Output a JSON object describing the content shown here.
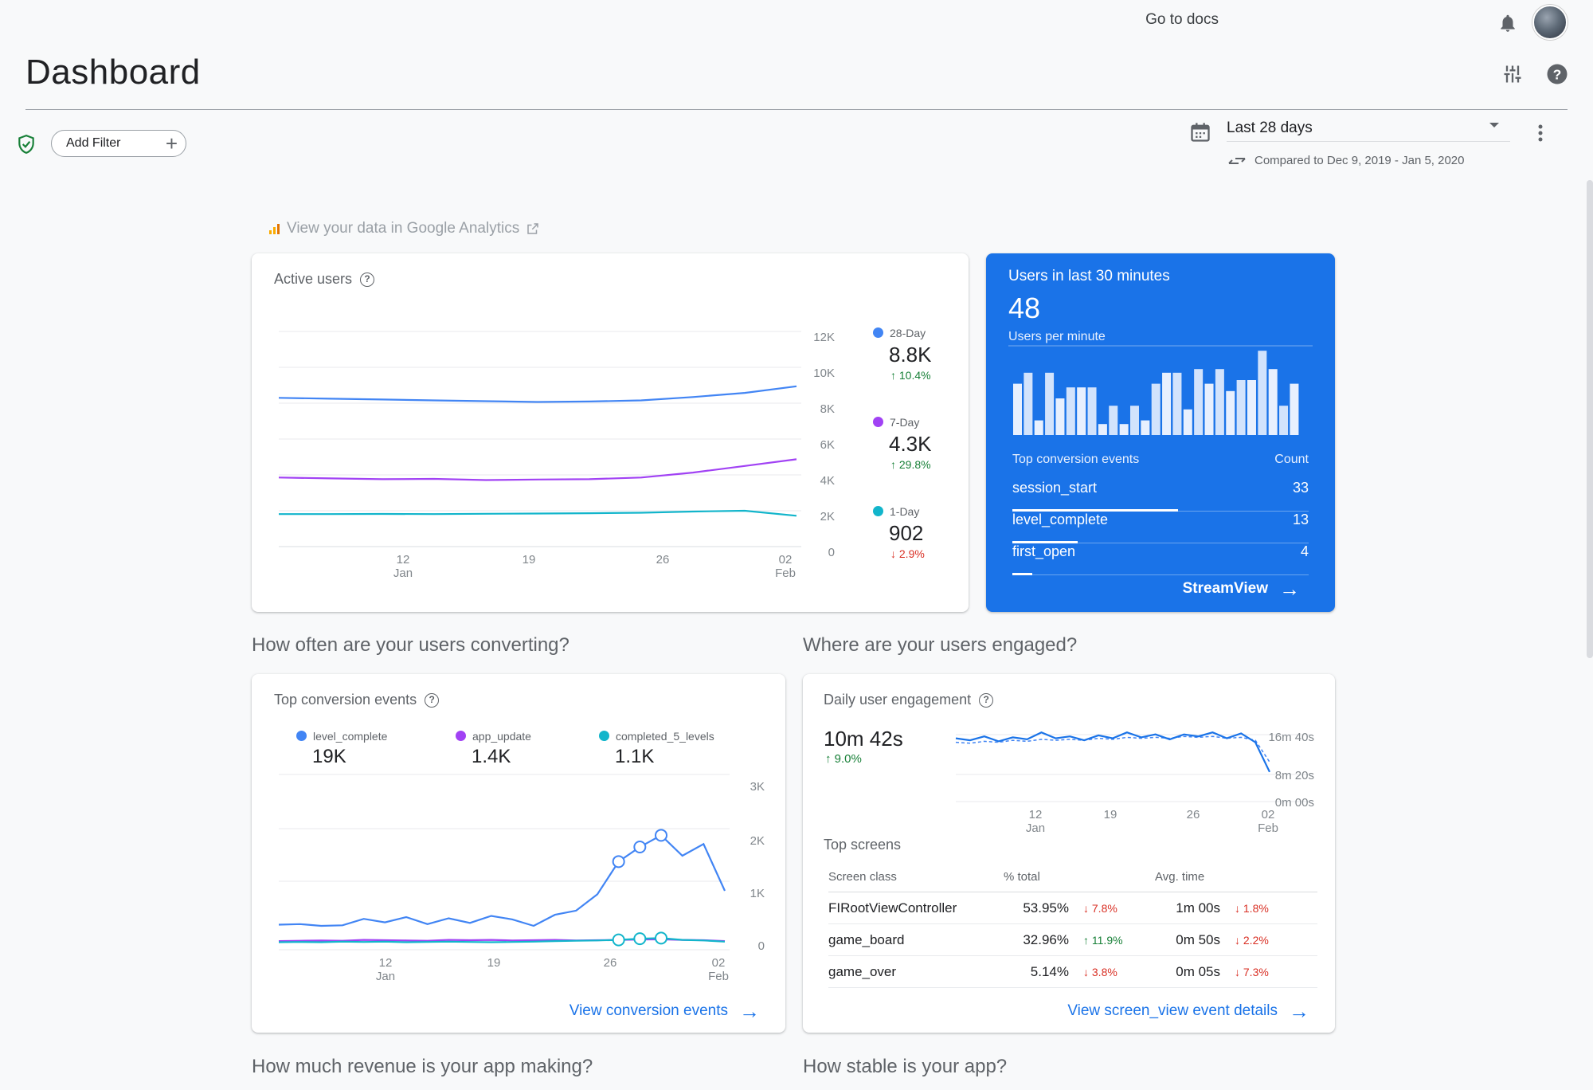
{
  "header": {
    "docs_link": "Go to docs",
    "title": "Dashboard"
  },
  "filters": {
    "add_filter": "Add Filter",
    "date_range": "Last 28 days",
    "compared": "Compared to Dec 9, 2019 - Jan 5, 2020"
  },
  "ga_link": "View your data in Google Analytics",
  "active_users": {
    "title": "Active users",
    "metrics": [
      {
        "label": "28-Day",
        "value": "8.8K",
        "delta": "10.4%",
        "dir": "up",
        "color": "#4285f4"
      },
      {
        "label": "7-Day",
        "value": "4.3K",
        "delta": "29.8%",
        "dir": "up",
        "color": "#a142f4"
      },
      {
        "label": "1-Day",
        "value": "902",
        "delta": "2.9%",
        "dir": "down",
        "color": "#12b5cb"
      }
    ],
    "y_ticks": [
      "12K",
      "10K",
      "8K",
      "6K",
      "4K",
      "2K",
      "0"
    ],
    "x_ticks": [
      {
        "day": "12",
        "month": "Jan"
      },
      {
        "day": "19",
        "month": ""
      },
      {
        "day": "26",
        "month": ""
      },
      {
        "day": "02",
        "month": "Feb"
      }
    ]
  },
  "realtime": {
    "title": "Users in last 30 minutes",
    "count": "48",
    "subtitle": "Users per minute",
    "table_header": "Top conversion events",
    "count_header": "Count",
    "events": [
      {
        "name": "session_start",
        "count": "33"
      },
      {
        "name": "level_complete",
        "count": "13"
      },
      {
        "name": "first_open",
        "count": "4"
      }
    ],
    "link": "StreamView"
  },
  "sections": {
    "converting": "How often are your users converting?",
    "engaged": "Where are your users engaged?",
    "revenue": "How much revenue is your app making?",
    "stable": "How stable is your app?"
  },
  "conversions": {
    "title": "Top conversion events",
    "metrics": [
      {
        "label": "level_complete",
        "value": "19K",
        "color": "#4285f4"
      },
      {
        "label": "app_update",
        "value": "1.4K",
        "color": "#a142f4"
      },
      {
        "label": "completed_5_levels",
        "value": "1.1K",
        "color": "#12b5cb"
      }
    ],
    "y_ticks": [
      "3K",
      "2K",
      "1K",
      "0"
    ],
    "x_ticks": [
      {
        "day": "12",
        "month": "Jan"
      },
      {
        "day": "19",
        "month": ""
      },
      {
        "day": "26",
        "month": ""
      },
      {
        "day": "02",
        "month": "Feb"
      }
    ],
    "link": "View conversion events"
  },
  "engagement": {
    "title": "Daily user engagement",
    "value": "10m 42s",
    "delta": "9.0%",
    "y_ticks": [
      "16m 40s",
      "8m 20s",
      "0m 00s"
    ],
    "x_ticks": [
      {
        "day": "12",
        "month": "Jan"
      },
      {
        "day": "19",
        "month": ""
      },
      {
        "day": "26",
        "month": ""
      },
      {
        "day": "02",
        "month": "Feb"
      }
    ],
    "top_screens": "Top screens",
    "columns": [
      "Screen class",
      "% total",
      "Avg. time"
    ],
    "rows": [
      {
        "name": "FIRootViewController",
        "pct": "53.95%",
        "pct_delta": "7.8%",
        "pct_dir": "down",
        "time": "1m 00s",
        "time_delta": "1.8%",
        "time_dir": "down"
      },
      {
        "name": "game_board",
        "pct": "32.96%",
        "pct_delta": "11.9%",
        "pct_dir": "up",
        "time": "0m 50s",
        "time_delta": "2.2%",
        "time_dir": "down"
      },
      {
        "name": "game_over",
        "pct": "5.14%",
        "pct_delta": "3.8%",
        "pct_dir": "down",
        "time": "0m 05s",
        "time_delta": "7.3%",
        "time_dir": "down"
      }
    ],
    "link": "View screen_view event details"
  },
  "chart_data": [
    {
      "type": "line",
      "ylim": [
        0,
        12000
      ],
      "series": [
        {
          "name": "28-Day",
          "values": [
            8000,
            7950,
            7900,
            7850,
            7800,
            7750,
            7780,
            7850,
            8050,
            8300,
            8700
          ]
        },
        {
          "name": "7-Day",
          "values": [
            3200,
            3150,
            3100,
            3120,
            3050,
            3080,
            3100,
            3200,
            3500,
            3900,
            4300
          ]
        },
        {
          "name": "1-Day",
          "values": [
            1000,
            1000,
            1010,
            1000,
            1020,
            1030,
            1050,
            1080,
            1150,
            1200,
            900
          ]
        }
      ]
    },
    {
      "type": "bar",
      "values": [
        14,
        17,
        4,
        17,
        10,
        13,
        13,
        13,
        3,
        8,
        3,
        8,
        4,
        14,
        17,
        17,
        7,
        18,
        14,
        18,
        12,
        15,
        15,
        23,
        18,
        8,
        14
      ]
    },
    {
      "type": "line",
      "ylim": [
        0,
        3000
      ],
      "series": [
        {
          "name": "level_complete",
          "values": [
            320,
            330,
            300,
            310,
            420,
            360,
            450,
            330,
            430,
            350,
            470,
            410,
            300,
            490,
            560,
            840,
            1400,
            1650,
            1850,
            1500,
            1700,
            900
          ]
        },
        {
          "name": "app_update",
          "values": [
            40,
            45,
            50,
            45,
            60,
            55,
            50,
            45,
            60,
            55,
            60,
            50,
            55,
            60,
            50,
            55,
            60,
            65,
            70,
            60,
            55,
            40
          ]
        },
        {
          "name": "completed_5_levels",
          "values": [
            20,
            25,
            20,
            30,
            25,
            30,
            20,
            25,
            30,
            25,
            20,
            25,
            30,
            40,
            45,
            50,
            60,
            80,
            90,
            60,
            50,
            30
          ]
        }
      ]
    },
    {
      "type": "line",
      "ylim": [
        0,
        1000
      ],
      "series": [
        {
          "values": [
            640,
            620,
            660,
            610,
            650,
            630,
            700,
            640,
            660,
            620,
            670,
            640,
            700,
            650,
            680,
            630,
            680,
            660,
            700,
            640,
            690,
            600,
            300
          ]
        },
        {
          "values": [
            600,
            590,
            610,
            600,
            620,
            610,
            630,
            620,
            630,
            620,
            640,
            630,
            650,
            640,
            650,
            640,
            660,
            650,
            660,
            640,
            650,
            620,
            400
          ]
        }
      ]
    }
  ]
}
